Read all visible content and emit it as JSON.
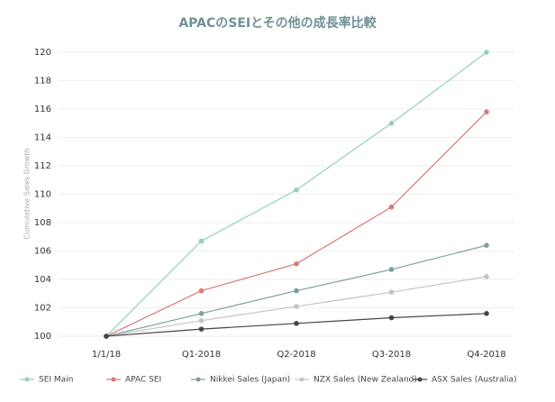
{
  "chart_data": {
    "type": "line",
    "title": "APACのSEIとその他の成長率比較",
    "y_label": "Cumulative Sales Growth",
    "categories": [
      "1/1/18",
      "Q1-2018",
      "Q2-2018",
      "Q3-2018",
      "Q4-2018"
    ],
    "series": [
      {
        "name": "SEI Main",
        "color": "#8fd3b0",
        "values": [
          100,
          106.7,
          110.3,
          115,
          120
        ]
      },
      {
        "name": "APAC SEI",
        "color": "#d77a7a",
        "values": [
          100,
          103.2,
          105.1,
          109.1,
          115.8
        ]
      },
      {
        "name": "Nikkei Sales (Japan)",
        "color": "#7f9ea0",
        "values": [
          100,
          101.6,
          103.2,
          104.7,
          106.4
        ]
      },
      {
        "name": "NZX Sales (New Zealand)",
        "color": "#c4c4c4",
        "values": [
          100,
          101.1,
          102.1,
          103.1,
          104.2
        ]
      },
      {
        "name": "ASX Sales (Australia)",
        "color": "#444444",
        "values": [
          100,
          100.5,
          100.9,
          101.3,
          101.6
        ]
      }
    ],
    "ylim": [
      100,
      120
    ],
    "yticks": [
      100,
      102,
      104,
      106,
      108,
      110,
      112,
      114,
      116,
      118,
      120
    ],
    "grid": true,
    "legend": "bottom"
  }
}
